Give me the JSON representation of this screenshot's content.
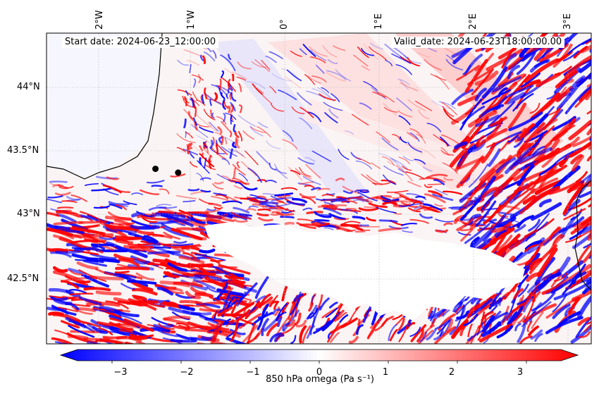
{
  "header": {
    "start_date": "Start date: 2024-06-23_12:00:00",
    "valid_date": "Valid_date: 2024-06-23T18:00:00.00"
  },
  "axes": {
    "lon_ticks": [
      "2°W",
      "1°W",
      "0°",
      "1°E",
      "2°E",
      "3°E"
    ],
    "lat_ticks": [
      "44°N",
      "43.5°N",
      "43°N",
      "42.5°N"
    ]
  },
  "colorbar": {
    "label": "850 hPa omega (Pa s⁻¹)",
    "tick_labels": [
      "−3",
      "−2",
      "−1",
      "0",
      "1",
      "2",
      "3"
    ],
    "range": [
      -3.5,
      3.5
    ],
    "extend": "both",
    "colormap": "bwr",
    "colors": {
      "low": "#0000ff",
      "mid": "#ffffff",
      "high": "#ff0000"
    }
  },
  "chart_data": {
    "type": "heatmap",
    "field": "850 hPa omega",
    "units": "Pa s⁻¹",
    "domain": {
      "lon": [
        -2.6,
        3.4
      ],
      "lat": [
        42.0,
        44.45
      ]
    },
    "markers": [
      {
        "lon": -1.4,
        "lat": 43.38
      },
      {
        "lon": -1.15,
        "lat": 43.35
      }
    ],
    "masked_region": "high terrain (Pyrenees) left blank"
  }
}
